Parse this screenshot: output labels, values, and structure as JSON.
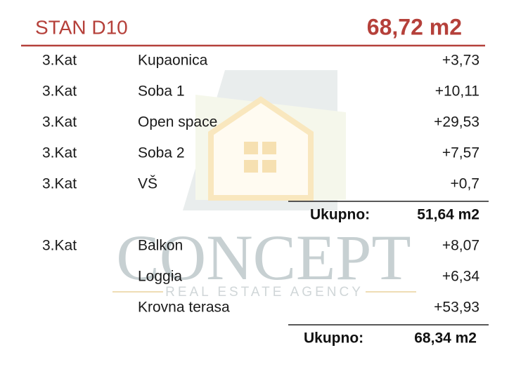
{
  "header": {
    "title": "STAN D10",
    "area": "68,72 m2"
  },
  "groups": [
    {
      "rows": [
        {
          "floor": "3.Kat",
          "room": "Kupaonica",
          "area": "+3,73"
        },
        {
          "floor": "3.Kat",
          "room": "Soba 1",
          "area": "+10,11"
        },
        {
          "floor": "3.Kat",
          "room": "Open space",
          "area": "+29,53"
        },
        {
          "floor": "3.Kat",
          "room": "Soba 2",
          "area": "+7,57"
        },
        {
          "floor": "3.Kat",
          "room": "VŠ",
          "area": "+0,7"
        }
      ],
      "total": {
        "label": "Ukupno:",
        "value": "51,64 m2"
      }
    },
    {
      "rows": [
        {
          "floor": "3.Kat",
          "room": "Balkon",
          "area": "+8,07"
        },
        {
          "room": "Loggia",
          "area": "+6,34"
        },
        {
          "room": "Krovna terasa",
          "area": "+53,93"
        }
      ],
      "total": {
        "label": "Ukupno:",
        "value": "68,34 m2"
      }
    }
  ],
  "watermark": {
    "name": "CONCEPT",
    "tagline": "REAL ESTATE AGENCY"
  }
}
